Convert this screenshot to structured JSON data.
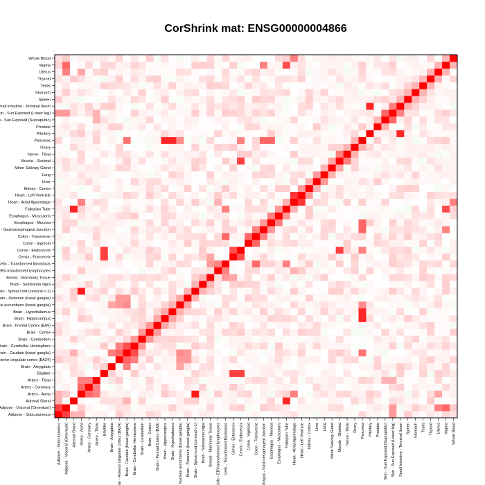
{
  "chart_data": {
    "type": "heatmap",
    "title": "CorShrink mat: ENSG00000004866",
    "xlabel": "",
    "ylabel": "",
    "labels": [
      "Adipose - Subcutaneous",
      "Adipose - Visceral (Omentum)",
      "Adrenal Gland",
      "Artery - Aorta",
      "Artery - Coronary",
      "Artery - Tibial",
      "Bladder",
      "Brain - Amygdala",
      "Brain - Anterior cingulate cortex (BA24)",
      "Brain - Caudate (basal ganglia)",
      "Brain - Cerebellar Hemisphere",
      "Brain - Cerebellum",
      "Brain - Cortex",
      "Brain - Frontal Cortex (BA9)",
      "Brain - Hippocampus",
      "Brain - Hypothalamus",
      "Brain - Nucleus accumbens (basal ganglia)",
      "Brain - Putamen (basal ganglia)",
      "Brain - Spinal cord (cervical c-1)",
      "Brain - Substantia nigra",
      "Breast - Mammary Tissue",
      "Cells - EBV-transformed lymphocytes",
      "Cells - Transformed fibroblasts",
      "Cervix - Ectocervix",
      "Cervix - Endocervix",
      "Colon - Sigmoid",
      "Colon - Transverse",
      "Esophagus - Gastroesophageal Junction",
      "Esophagus - Mucosa",
      "Esophagus - Muscularis",
      "Fallopian Tube",
      "Heart - Atrial Appendage",
      "Heart - Left Ventricle",
      "Kidney - Cortex",
      "Liver",
      "Lung",
      "Minor Salivary Gland",
      "Muscle - Skeletal",
      "Nerve - Tibial",
      "Ovary",
      "Pancreas",
      "Pituitary",
      "Prostate",
      "Skin - Sun Exposed (Suprapubic)",
      "Skin - Sun Exposed (Lower leg)",
      "Small Intestine - Terminal Ileum",
      "Spleen",
      "Stomach",
      "Testis",
      "Thyroid",
      "Uterus",
      "Vagina",
      "Whole Blood"
    ],
    "y_tick_labels": [
      "Adipose - Subcutaneous",
      "Adipose - Visceral (Omentum)",
      "Adrenal Gland",
      "Artery - Aorta",
      "Artery - Coronary",
      "Artery - Tibial",
      "Bladder",
      "Brain - Amygdala",
      "Brain - Anterior cingulate cortex (BA24)",
      "Brain - Caudate (basal ganglia)",
      "Brain - Cerebellar Hemisphere",
      "Brain - Cerebellum",
      "Brain - Cortex",
      "Brain - Frontal Cortex (BA9)",
      "Brain - Hippocampus",
      "Brain - Hypothalamus",
      "Brain - Nucleus accumbens (basal ganglia)",
      "Brain - Putamen (basal ganglia)",
      "Brain - Spinal cord (cervical c-1)",
      "Brain - Substantia nigra",
      "Breast - Mammary Tissue",
      "Cells - EBV-transformed lymphocytes",
      "Cells - Transformed fibroblasts",
      "Cervix - Ectocervix",
      "Cervix - Endocervix",
      "Colon - Sigmoid",
      "Colon - Transverse",
      "Esophagus - Gastroesophageal Junction",
      "Esophagus - Mucosa",
      "Esophagus - Muscularis",
      "Fallopian Tube",
      "Heart - Atrial Appendage",
      "Heart - Left Ventricle",
      "Kidney - Cortex",
      "Liver",
      "Lung",
      "Minor Salivary Gland",
      "Muscle - Skeletal",
      "Nerve - Tibial",
      "Ovary",
      "Pancreas",
      "Pituitary",
      "Prostate",
      "Skin - Sun Exposed (Suprapubic)",
      "Skin - Sun Exposed (Lower leg)",
      "Small Intestine - Terminal Ileum",
      "Spleen",
      "Stomach",
      "Testis",
      "Thyroid",
      "Uterus",
      "Vagina",
      "Whole Blood"
    ],
    "x_tick_labels": [
      "Adipose - Subcutaneous",
      "Adipose - Visceral (Omentum)",
      "Adrenal Gland",
      "Artery - Aorta",
      "Artery - Coronary",
      "Artery - Tibial",
      "Bladder",
      "Brain - Amygdala",
      "Brain - Anterior cingulate cortex (BA24)",
      "Brain - Caudate (basal ganglia)",
      "Brain - Cerebellar Hemisphere",
      "Brain - Cerebellum",
      "Brain - Cortex",
      "Brain - Frontal Cortex (BA9)",
      "Brain - Hippocampus",
      "Brain - Hypothalamus",
      "Brain - Nucleus accumbens (basal ganglia)",
      "Brain - Putamen (basal ganglia)",
      "Brain - Spinal cord (cervical c-1)",
      "Brain - Substantia nigra",
      "Breast - Mammary Tissue",
      "Cells - EBV-transformed lymphocytes",
      "Cells - Transformed fibroblasts",
      "Cervix - Ectocervix",
      "Cervix - Endocervix",
      "Colon - Sigmoid",
      "Colon - Transverse",
      "Esophagus - Gastroesophageal Junction",
      "Esophagus - Mucosa",
      "Esophagus - Muscularis",
      "Fallopian Tube",
      "Heart - Atrial Appendage",
      "Heart - Left Ventricle",
      "Kidney - Cortex",
      "Liver",
      "Lung",
      "Minor Salivary Gland",
      "Muscle - Skeletal",
      "Nerve - Tibial",
      "Ovary",
      "Pancreas",
      "Pituitary",
      "Prostate",
      "Skin - Sun Exposed (Suprapubic)",
      "Skin - Sun Exposed (Lower leg)",
      "Small Intestine - Terminal Ileum",
      "Spleen",
      "Stomach",
      "Testis",
      "Thyroid",
      "Uterus",
      "Vagina",
      "Whole Blood"
    ],
    "value_range": [
      -1,
      1
    ],
    "colors": {
      "high": "#ff0000",
      "zero": "#ffffff",
      "low": "#00c000"
    },
    "diagonal": 1,
    "background": 0.03,
    "strong_pairs": [
      [
        0,
        1,
        0.75
      ],
      [
        0,
        3,
        0.3
      ],
      [
        1,
        3,
        0.2
      ],
      [
        1,
        44,
        0.4
      ],
      [
        1,
        51,
        0.6
      ],
      [
        2,
        30,
        0.85
      ],
      [
        2,
        9,
        0.3
      ],
      [
        3,
        5,
        0.5
      ],
      [
        3,
        31,
        0.5
      ],
      [
        3,
        18,
        0.9
      ],
      [
        3,
        4,
        0.6
      ],
      [
        4,
        5,
        0.5
      ],
      [
        5,
        43,
        0.3
      ],
      [
        5,
        44,
        0.3
      ],
      [
        6,
        24,
        0.75
      ],
      [
        7,
        9,
        0.5
      ],
      [
        7,
        16,
        0.35
      ],
      [
        8,
        9,
        0.6
      ],
      [
        8,
        10,
        0.5
      ],
      [
        8,
        16,
        0.4
      ],
      [
        8,
        17,
        0.4
      ],
      [
        9,
        10,
        0.7
      ],
      [
        9,
        16,
        0.45
      ],
      [
        9,
        17,
        0.4
      ],
      [
        9,
        40,
        0.55
      ],
      [
        10,
        11,
        0.4
      ],
      [
        11,
        12,
        0.4
      ],
      [
        12,
        13,
        0.4
      ],
      [
        13,
        14,
        0.35
      ],
      [
        14,
        15,
        0.35
      ],
      [
        15,
        16,
        0.3
      ],
      [
        16,
        17,
        0.35
      ],
      [
        17,
        18,
        0.3
      ],
      [
        16,
        40,
        0.45
      ],
      [
        18,
        19,
        0.3
      ],
      [
        19,
        20,
        0.3
      ],
      [
        20,
        23,
        0.35
      ],
      [
        20,
        22,
        0.4
      ],
      [
        21,
        22,
        0.5
      ],
      [
        22,
        26,
        0.6
      ],
      [
        22,
        30,
        0.5
      ],
      [
        23,
        24,
        0.7
      ],
      [
        23,
        6,
        0.75
      ],
      [
        24,
        40,
        0.5
      ],
      [
        24,
        37,
        0.75
      ],
      [
        25,
        26,
        0.6
      ],
      [
        26,
        27,
        0.5
      ],
      [
        27,
        28,
        0.4
      ],
      [
        28,
        29,
        0.5
      ],
      [
        29,
        30,
        0.4
      ],
      [
        30,
        31,
        0.3
      ],
      [
        31,
        32,
        0.8
      ],
      [
        32,
        33,
        0.4
      ],
      [
        33,
        34,
        0.3
      ],
      [
        34,
        35,
        0.4
      ],
      [
        35,
        36,
        0.3
      ],
      [
        36,
        37,
        0.35
      ],
      [
        37,
        38,
        0.5
      ],
      [
        38,
        39,
        0.3
      ],
      [
        39,
        40,
        0.3
      ],
      [
        40,
        24,
        0.5
      ],
      [
        40,
        14,
        0.85
      ],
      [
        40,
        15,
        0.85
      ],
      [
        40,
        27,
        0.6
      ],
      [
        40,
        28,
        0.6
      ],
      [
        41,
        45,
        0.85
      ],
      [
        42,
        43,
        0.3
      ],
      [
        43,
        44,
        0.6
      ],
      [
        44,
        45,
        0.5
      ],
      [
        45,
        46,
        0.3
      ],
      [
        46,
        47,
        0.3
      ],
      [
        47,
        48,
        0.3
      ],
      [
        48,
        49,
        0.3
      ],
      [
        49,
        50,
        0.3
      ],
      [
        50,
        51,
        0.3
      ],
      [
        51,
        52,
        0.3
      ],
      [
        0,
        44,
        0.4
      ],
      [
        0,
        2,
        0.3
      ],
      [
        1,
        0,
        0.75
      ],
      [
        50,
        1,
        0.5
      ],
      [
        50,
        3,
        0.35
      ],
      [
        52,
        31,
        0.5
      ],
      [
        51,
        27,
        0.5
      ],
      [
        30,
        51,
        0.7
      ],
      [
        21,
        31,
        0.3
      ]
    ]
  }
}
